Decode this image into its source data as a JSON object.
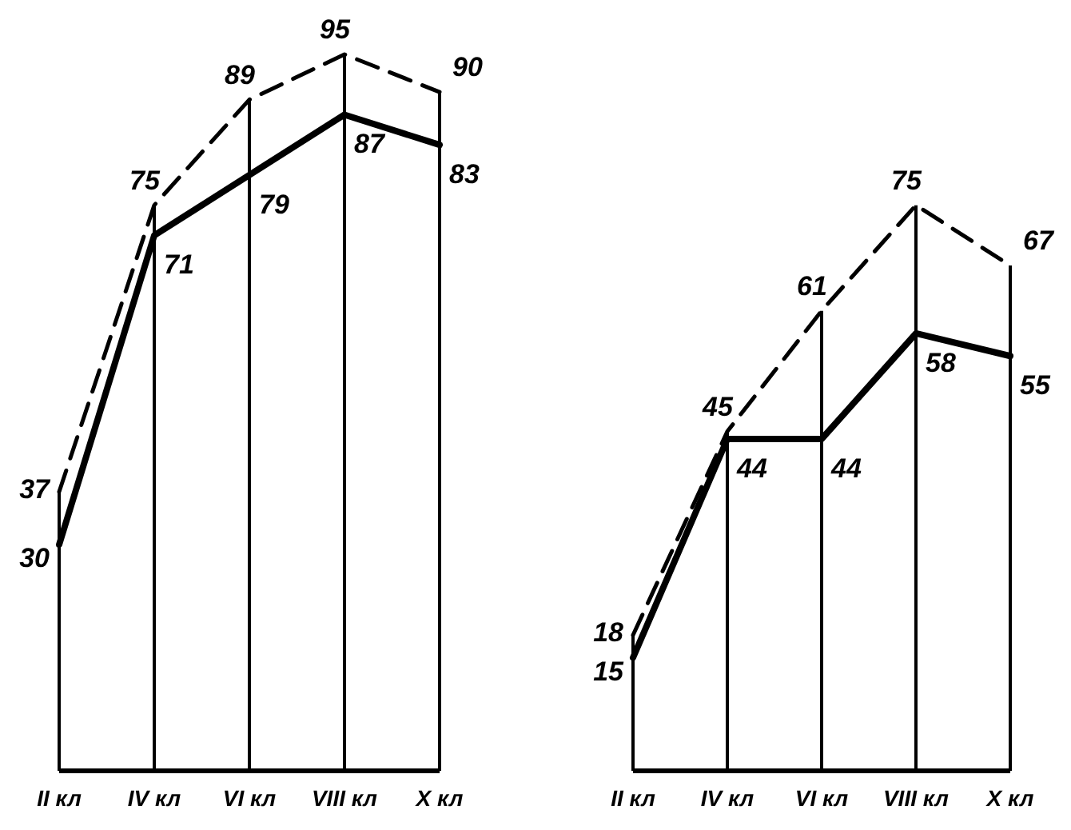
{
  "chart_data": [
    {
      "type": "line",
      "categories": [
        "II кл",
        "IV кл",
        "VI кл",
        "VIII кл",
        "X кл"
      ],
      "data_labels": true,
      "grid": "x",
      "series": [
        {
          "color": "#000000",
          "line_style": "dashed",
          "values": [
            37,
            75,
            89,
            95,
            90
          ]
        },
        {
          "color": "#000000",
          "line_style": "solid",
          "values": [
            30,
            71,
            79,
            87,
            83
          ]
        }
      ]
    },
    {
      "type": "line",
      "categories": [
        "II кл",
        "IV кл",
        "VI кл",
        "VIII кл",
        "X кл"
      ],
      "data_labels": true,
      "grid": "x",
      "series": [
        {
          "color": "#000000",
          "line_style": "dashed",
          "values": [
            18,
            45,
            61,
            75,
            67
          ]
        },
        {
          "color": "#000000",
          "line_style": "solid",
          "values": [
            15,
            44,
            44,
            58,
            55
          ]
        }
      ]
    }
  ]
}
